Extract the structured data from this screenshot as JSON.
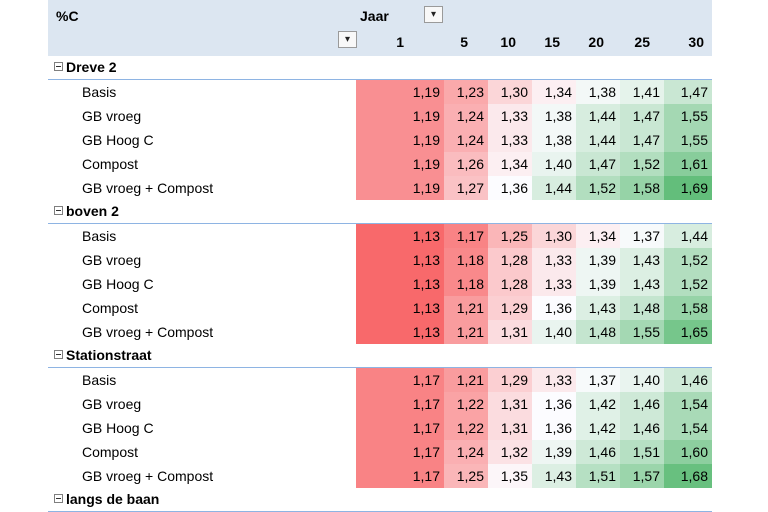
{
  "header": {
    "measure_label": "%C",
    "column_field_label": "Jaar",
    "columns": [
      "1",
      "5",
      "10",
      "15",
      "20",
      "25",
      "30"
    ]
  },
  "groups": [
    {
      "name": "Dreve 2",
      "rows": [
        {
          "label": "Basis",
          "values": [
            "1,19",
            "1,23",
            "1,30",
            "1,34",
            "1,38",
            "1,41",
            "1,47"
          ]
        },
        {
          "label": "GB vroeg",
          "values": [
            "1,19",
            "1,24",
            "1,33",
            "1,38",
            "1,44",
            "1,47",
            "1,55"
          ]
        },
        {
          "label": "GB Hoog C",
          "values": [
            "1,19",
            "1,24",
            "1,33",
            "1,38",
            "1,44",
            "1,47",
            "1,55"
          ]
        },
        {
          "label": "Compost",
          "values": [
            "1,19",
            "1,26",
            "1,34",
            "1,40",
            "1,47",
            "1,52",
            "1,61"
          ]
        },
        {
          "label": "GB vroeg + Compost",
          "values": [
            "1,19",
            "1,27",
            "1,36",
            "1,44",
            "1,52",
            "1,58",
            "1,69"
          ]
        }
      ]
    },
    {
      "name": "boven 2",
      "rows": [
        {
          "label": "Basis",
          "values": [
            "1,13",
            "1,17",
            "1,25",
            "1,30",
            "1,34",
            "1,37",
            "1,44"
          ]
        },
        {
          "label": "GB vroeg",
          "values": [
            "1,13",
            "1,18",
            "1,28",
            "1,33",
            "1,39",
            "1,43",
            "1,52"
          ]
        },
        {
          "label": "GB Hoog C",
          "values": [
            "1,13",
            "1,18",
            "1,28",
            "1,33",
            "1,39",
            "1,43",
            "1,52"
          ]
        },
        {
          "label": "Compost",
          "values": [
            "1,13",
            "1,21",
            "1,29",
            "1,36",
            "1,43",
            "1,48",
            "1,58"
          ]
        },
        {
          "label": "GB vroeg + Compost",
          "values": [
            "1,13",
            "1,21",
            "1,31",
            "1,40",
            "1,48",
            "1,55",
            "1,65"
          ]
        }
      ]
    },
    {
      "name": "Stationstraat",
      "rows": [
        {
          "label": "Basis",
          "values": [
            "1,17",
            "1,21",
            "1,29",
            "1,33",
            "1,37",
            "1,40",
            "1,46"
          ]
        },
        {
          "label": "GB vroeg",
          "values": [
            "1,17",
            "1,22",
            "1,31",
            "1,36",
            "1,42",
            "1,46",
            "1,54"
          ]
        },
        {
          "label": "GB Hoog C",
          "values": [
            "1,17",
            "1,22",
            "1,31",
            "1,36",
            "1,42",
            "1,46",
            "1,54"
          ]
        },
        {
          "label": "Compost",
          "values": [
            "1,17",
            "1,24",
            "1,32",
            "1,39",
            "1,46",
            "1,51",
            "1,60"
          ]
        },
        {
          "label": "GB vroeg + Compost",
          "values": [
            "1,17",
            "1,25",
            "1,35",
            "1,43",
            "1,51",
            "1,57",
            "1,68"
          ]
        }
      ]
    },
    {
      "name": "langs de baan",
      "rows": []
    }
  ],
  "color_scale": {
    "low": "#f8696b",
    "mid": "#fcfcff",
    "high": "#63be7b"
  }
}
